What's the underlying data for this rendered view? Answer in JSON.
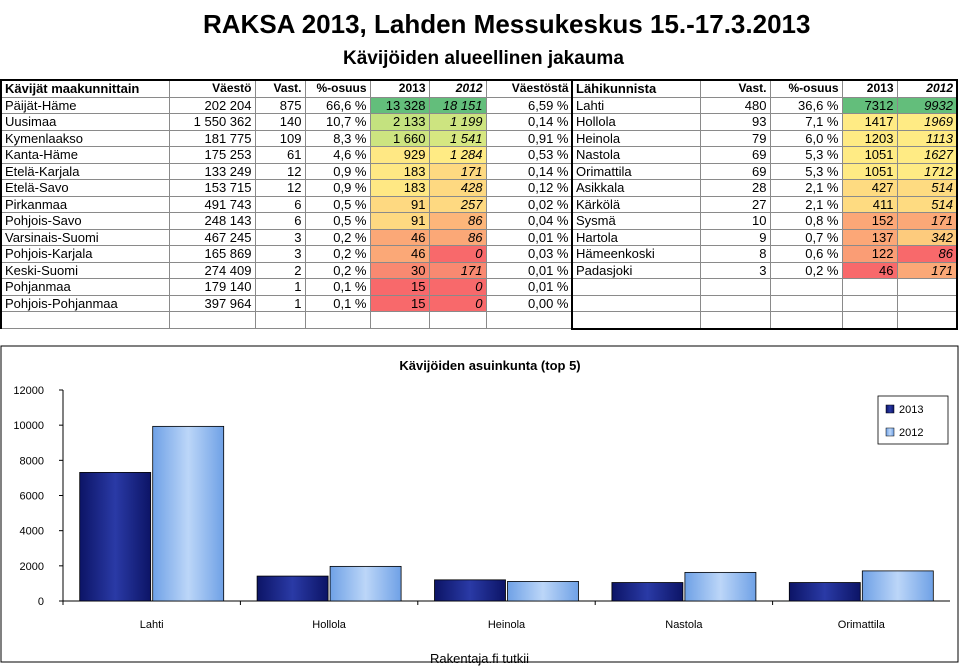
{
  "header": {
    "title": "RAKSA 2013, Lahden Messukeskus 15.-17.3.2013",
    "subtitle": "Kävijöiden alueellinen jakauma"
  },
  "left_table": {
    "headers": [
      "Kävijät maakunnittain",
      "Väestö",
      "Vast.",
      "%-osuus",
      "2013",
      "2012",
      "Väestöstä"
    ],
    "rows": [
      [
        "Päijät-Häme",
        "202 204",
        "875",
        "66,6 %",
        "13 328",
        "18 151",
        "6,59 %"
      ],
      [
        "Uusimaa",
        "1 550 362",
        "140",
        "10,7 %",
        "2 133",
        "1 199",
        "0,14 %"
      ],
      [
        "Kymenlaakso",
        "181 775",
        "109",
        "8,3 %",
        "1 660",
        "1 541",
        "0,91 %"
      ],
      [
        "Kanta-Häme",
        "175 253",
        "61",
        "4,6 %",
        "929",
        "1 284",
        "0,53 %"
      ],
      [
        "Etelä-Karjala",
        "133 249",
        "12",
        "0,9 %",
        "183",
        "171",
        "0,14 %"
      ],
      [
        "Etelä-Savo",
        "153 715",
        "12",
        "0,9 %",
        "183",
        "428",
        "0,12 %"
      ],
      [
        "Pirkanmaa",
        "491 743",
        "6",
        "0,5 %",
        "91",
        "257",
        "0,02 %"
      ],
      [
        "Pohjois-Savo",
        "248 143",
        "6",
        "0,5 %",
        "91",
        "86",
        "0,04 %"
      ],
      [
        "Varsinais-Suomi",
        "467 245",
        "3",
        "0,2 %",
        "46",
        "86",
        "0,01 %"
      ],
      [
        "Pohjois-Karjala",
        "165 869",
        "3",
        "0,2 %",
        "46",
        "0",
        "0,03 %"
      ],
      [
        "Keski-Suomi",
        "274 409",
        "2",
        "0,2 %",
        "30",
        "171",
        "0,01 %"
      ],
      [
        "Pohjanmaa",
        "179 140",
        "1",
        "0,1 %",
        "15",
        "0",
        "0,01 %"
      ],
      [
        "Pohjois-Pohjanmaa",
        "397 964",
        "1",
        "0,1 %",
        "15",
        "0",
        "0,00 %"
      ]
    ],
    "col2013_colors": [
      "#63be7b",
      "#c4e27f",
      "#cde480",
      "#ffe884",
      "#ffe884",
      "#ffe884",
      "#fed981",
      "#fed981",
      "#fba877",
      "#fba877",
      "#f98971",
      "#f8696b",
      "#f8696b"
    ],
    "col2012_colors": [
      "#63be7b",
      "#cde480",
      "#d6e781",
      "#ffeb84",
      "#fed981",
      "#fed981",
      "#fed981",
      "#fdb67a",
      "#fba877",
      "#f8696b",
      "#f98971",
      "#f8696b",
      "#f8696b"
    ]
  },
  "right_table": {
    "headers": [
      "Lähikunnista",
      "Vast.",
      "%-osuus",
      "2013",
      "2012"
    ],
    "rows": [
      [
        "Lahti",
        "480",
        "36,6 %",
        "7312",
        "9932"
      ],
      [
        "Hollola",
        "93",
        "7,1 %",
        "1417",
        "1969"
      ],
      [
        "Heinola",
        "79",
        "6,0 %",
        "1203",
        "1113"
      ],
      [
        "Nastola",
        "69",
        "5,3 %",
        "1051",
        "1627"
      ],
      [
        "Orimattila",
        "69",
        "5,3 %",
        "1051",
        "1712"
      ],
      [
        "Asikkala",
        "28",
        "2,1 %",
        "427",
        "514"
      ],
      [
        "Kärkölä",
        "27",
        "2,1 %",
        "411",
        "514"
      ],
      [
        "Sysmä",
        "10",
        "0,8 %",
        "152",
        "171"
      ],
      [
        "Hartola",
        "9",
        "0,7 %",
        "137",
        "342"
      ],
      [
        "Hämeenkoski",
        "8",
        "0,6 %",
        "122",
        "86"
      ],
      [
        "Padasjoki",
        "3",
        "0,2 %",
        "46",
        "171"
      ]
    ],
    "col2013_colors": [
      "#63be7b",
      "#ffeb84",
      "#ffeb84",
      "#ffeb84",
      "#ffeb84",
      "#fedb81",
      "#fedb81",
      "#fca777",
      "#fca777",
      "#fa9d75",
      "#f8696b"
    ],
    "col2012_colors": [
      "#63be7b",
      "#ffeb84",
      "#ffeb84",
      "#ffeb84",
      "#ffeb84",
      "#fedb81",
      "#fedb81",
      "#fba877",
      "#fdcb7d",
      "#f8696b",
      "#fba877"
    ]
  },
  "chart_data": {
    "type": "bar",
    "title": "Kävijöiden asuinkunta (top 5)",
    "categories": [
      "Lahti",
      "Hollola",
      "Heinola",
      "Nastola",
      "Orimattila"
    ],
    "series": [
      {
        "name": "2013",
        "values": [
          7312,
          1417,
          1203,
          1051,
          1051
        ],
        "color": "#1f2a8a"
      },
      {
        "name": "2012",
        "values": [
          9932,
          1969,
          1113,
          1627,
          1712
        ],
        "color": "#8fb8ee"
      }
    ],
    "ylim": [
      0,
      12000
    ],
    "yticks": [
      "0",
      "2000",
      "4000",
      "6000",
      "8000",
      "10000",
      "12000"
    ],
    "legend": "top-right",
    "grid": false
  },
  "footer": {
    "source": "Rakentaja.fi tutkii"
  }
}
